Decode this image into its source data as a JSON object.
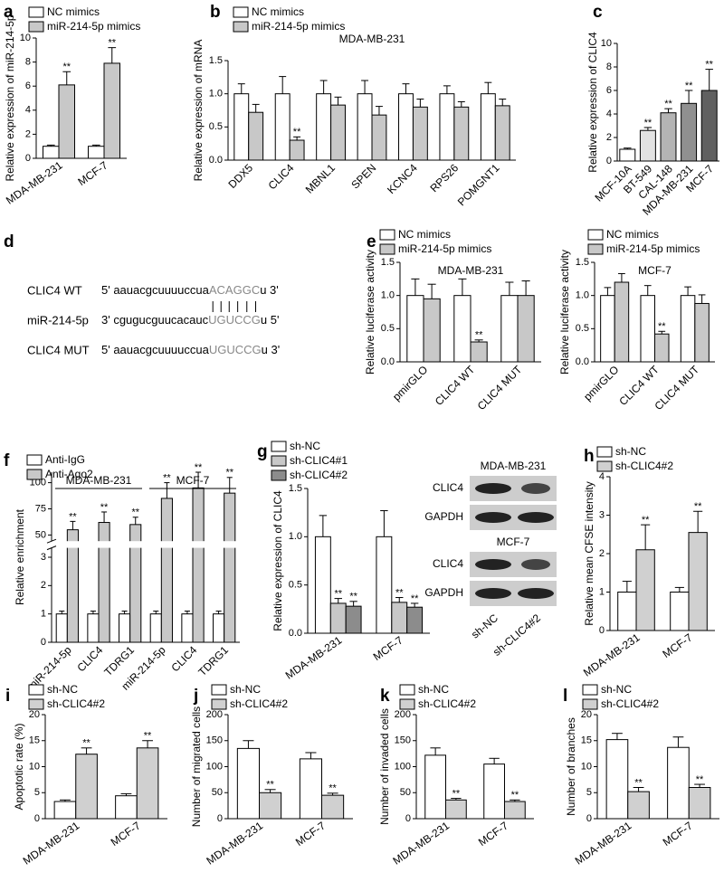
{
  "chart_data": [
    {
      "label": "a",
      "type": "bar",
      "y_label": "Relative expression of miR-214-5p",
      "categories": [
        "MDA-MB-231",
        "MCF-7"
      ],
      "series": [
        {
          "name": "NC mimics",
          "color": "#ffffff",
          "values": [
            1,
            1
          ],
          "errors": [
            0.1,
            0.1
          ]
        },
        {
          "name": "miR-214-5p mimics",
          "color": "#c8c8c8",
          "values": [
            6.1,
            7.9
          ],
          "errors": [
            1.1,
            1.3
          ],
          "annotations": [
            "**",
            "**"
          ]
        }
      ],
      "ylim": [
        0,
        10
      ],
      "yticks": [
        0,
        2,
        4,
        6,
        8,
        10
      ]
    },
    {
      "label": "b",
      "type": "bar",
      "subtitle": "MDA-MB-231",
      "y_label": "Relative expression of mRNA",
      "categories": [
        "DDX5",
        "CLIC4",
        "MBNL1",
        "SPEN",
        "KCNC4",
        "RPS26",
        "POMGNT1"
      ],
      "series": [
        {
          "name": "NC mimics",
          "color": "#ffffff",
          "values": [
            1,
            1,
            1,
            1,
            1,
            1,
            1
          ],
          "errors": [
            0.15,
            0.26,
            0.2,
            0.2,
            0.15,
            0.12,
            0.17
          ]
        },
        {
          "name": "miR-214-5p mimics",
          "color": "#c8c8c8",
          "values": [
            0.72,
            0.3,
            0.83,
            0.68,
            0.8,
            0.8,
            0.82
          ],
          "errors": [
            0.12,
            0.05,
            0.12,
            0.13,
            0.12,
            0.08,
            0.1
          ],
          "annotations": [
            null,
            "**",
            null,
            null,
            null,
            null,
            null
          ]
        }
      ],
      "ylim": [
        0,
        1.5
      ],
      "yticks": [
        {
          "value": 0,
          "label": "0.0"
        },
        {
          "value": 0.5,
          "label": "0.5"
        },
        {
          "value": 1,
          "label": "1.0"
        },
        {
          "value": 1.5,
          "label": "1.5"
        }
      ]
    },
    {
      "label": "c",
      "type": "bar",
      "y_label": "Relative expression of CLIC4",
      "categories": [
        "MCF-10A",
        "BT-549",
        "CAL-148",
        "MDA-MB-231",
        "MCF-7"
      ],
      "series": [
        {
          "colors": [
            "#ffffff",
            "#e2e2e2",
            "#b4b4b4",
            "#909090",
            "#606060"
          ],
          "values": [
            1,
            2.6,
            4.1,
            4.9,
            6.0
          ],
          "errors": [
            0.1,
            0.25,
            0.35,
            1.1,
            1.8
          ],
          "annotations": [
            null,
            "**",
            "**",
            "**",
            "**"
          ]
        }
      ],
      "ylim": [
        0,
        10
      ],
      "yticks": [
        0,
        2,
        4,
        6,
        8,
        10
      ]
    },
    {
      "label": "e",
      "type": "bar",
      "subtitle": "MDA-MB-231",
      "y_label": "Relative luciferase activity",
      "categories": [
        "pmirGLO",
        "CLIC4 WT",
        "CLIC4 MUT"
      ],
      "series": [
        {
          "name": "NC mimics",
          "color": "#ffffff",
          "values": [
            1,
            1,
            1
          ],
          "errors": [
            0.25,
            0.25,
            0.2
          ]
        },
        {
          "name": "miR-214-5p mimics",
          "color": "#c8c8c8",
          "values": [
            0.95,
            0.3,
            1.0
          ],
          "errors": [
            0.22,
            0.03,
            0.22
          ],
          "annotations": [
            null,
            "**",
            null
          ]
        }
      ],
      "ylim": [
        0,
        1.5
      ],
      "yticks": [
        {
          "value": 0,
          "label": "0.0"
        },
        {
          "value": 0.5,
          "label": "0.5"
        },
        {
          "value": 1,
          "label": "1.0"
        },
        {
          "value": 1.5,
          "label": "1.5"
        }
      ]
    },
    {
      "type": "bar",
      "subtitle": "MCF-7",
      "y_label": "Relative luciferase activity",
      "categories": [
        "pmirGLO",
        "CLIC4 WT",
        "CLIC4 MUT"
      ],
      "series": [
        {
          "name": "NC mimics",
          "color": "#ffffff",
          "values": [
            1,
            1,
            1
          ],
          "errors": [
            0.12,
            0.15,
            0.13
          ]
        },
        {
          "name": "miR-214-5p mimics",
          "color": "#c8c8c8",
          "values": [
            1.2,
            0.42,
            0.88
          ],
          "errors": [
            0.13,
            0.04,
            0.13
          ],
          "annotations": [
            null,
            "**",
            null
          ]
        }
      ],
      "ylim": [
        0,
        1.5
      ],
      "yticks": [
        {
          "value": 0,
          "label": "0.0"
        },
        {
          "value": 0.5,
          "label": "0.5"
        },
        {
          "value": 1,
          "label": "1.0"
        },
        {
          "value": 1.5,
          "label": "1.5"
        }
      ]
    },
    {
      "label": "f",
      "type": "bar",
      "y_label": "Relative enrichment",
      "categories": [
        "miR-214-5p",
        "CLIC4",
        "TDRG1",
        "miR-214-5p",
        "CLIC4",
        "TDRG1"
      ],
      "groups": [
        {
          "name": "MDA-MB-231",
          "size": 3
        },
        {
          "name": "MCF-7",
          "size": 3
        }
      ],
      "series": [
        {
          "name": "Anti-IgG",
          "color": "#ffffff",
          "values": [
            1,
            1,
            1,
            1,
            1,
            1
          ],
          "errors": [
            0.1,
            0.1,
            0.1,
            0.1,
            0.1,
            0.1
          ]
        },
        {
          "name": "Anti-Ago2",
          "color": "#c8c8c8",
          "values": [
            55,
            62,
            60,
            85,
            95,
            90
          ],
          "errors": [
            8,
            10,
            7,
            15,
            15,
            15
          ],
          "annotations": [
            "**",
            "**",
            "**",
            "**",
            "**",
            "**"
          ]
        }
      ],
      "ylim": [
        0,
        110
      ],
      "ybreak": [
        3.3,
        45
      ],
      "yticks": [
        0,
        1,
        2,
        3,
        50,
        75,
        100
      ]
    },
    {
      "label": "g",
      "type": "bar",
      "y_label": "Relative expression of CLIC4",
      "categories": [
        "MDA-MB-231",
        "MCF-7"
      ],
      "series": [
        {
          "name": "sh-NC",
          "color": "#ffffff",
          "values": [
            1,
            1
          ],
          "errors": [
            0.22,
            0.27
          ]
        },
        {
          "name": "sh-CLIC4#1",
          "color": "#c8c8c8",
          "values": [
            0.31,
            0.32
          ],
          "errors": [
            0.05,
            0.05
          ],
          "annotations": [
            "**",
            "**"
          ]
        },
        {
          "name": "sh-CLIC4#2",
          "color": "#8c8c8c",
          "values": [
            0.28,
            0.27
          ],
          "errors": [
            0.05,
            0.04
          ],
          "annotations": [
            "**",
            "**"
          ]
        }
      ],
      "ylim": [
        0,
        1.5
      ],
      "yticks": [
        {
          "value": 0,
          "label": "0.0"
        },
        {
          "value": 0.5,
          "label": "0.5"
        },
        {
          "value": 1,
          "label": "1.0"
        },
        {
          "value": 1.5,
          "label": "1.5"
        }
      ]
    },
    {
      "label": "h",
      "type": "bar",
      "y_label": "Relative mean CFSE intensity",
      "categories": [
        "MDA-MB-231",
        "MCF-7"
      ],
      "series": [
        {
          "name": "sh-NC",
          "color": "#ffffff",
          "values": [
            1,
            1
          ],
          "errors": [
            0.28,
            0.12
          ]
        },
        {
          "name": "sh-CLIC4#2",
          "color": "#d0d0d0",
          "values": [
            2.1,
            2.55
          ],
          "errors": [
            0.65,
            0.55
          ],
          "annotations": [
            "**",
            "**"
          ]
        }
      ],
      "ylim": [
        0,
        4
      ],
      "yticks": [
        0,
        1,
        2,
        3,
        4
      ]
    },
    {
      "label": "i",
      "type": "bar",
      "y_label": "Apoptotic rate (%)",
      "categories": [
        "MDA-MB-231",
        "MCF-7"
      ],
      "series": [
        {
          "name": "sh-NC",
          "color": "#ffffff",
          "values": [
            3.3,
            4.4
          ],
          "errors": [
            0.3,
            0.4
          ]
        },
        {
          "name": "sh-CLIC4#2",
          "color": "#d0d0d0",
          "values": [
            12.4,
            13.6
          ],
          "errors": [
            1.2,
            1.4
          ],
          "annotations": [
            "**",
            "**"
          ]
        }
      ],
      "ylim": [
        0,
        20
      ],
      "yticks": [
        0,
        5,
        10,
        15,
        20
      ]
    },
    {
      "label": "j",
      "type": "bar",
      "y_label": "Number of migrated cells",
      "categories": [
        "MDA-MB-231",
        "MCF-7"
      ],
      "series": [
        {
          "name": "sh-NC",
          "color": "#ffffff",
          "values": [
            135,
            115
          ],
          "errors": [
            15,
            12
          ]
        },
        {
          "name": "sh-CLIC4#2",
          "color": "#d0d0d0",
          "values": [
            50,
            45
          ],
          "errors": [
            6,
            4
          ],
          "annotations": [
            "**",
            "**"
          ]
        }
      ],
      "ylim": [
        0,
        200
      ],
      "yticks": [
        0,
        50,
        100,
        150,
        200
      ]
    },
    {
      "label": "k",
      "type": "bar",
      "y_label": "Number of invaded cells",
      "categories": [
        "MDA-MB-231",
        "MCF-7"
      ],
      "series": [
        {
          "name": "sh-NC",
          "color": "#ffffff",
          "values": [
            122,
            105
          ],
          "errors": [
            14,
            11
          ]
        },
        {
          "name": "sh-CLIC4#2",
          "color": "#d0d0d0",
          "values": [
            36,
            33
          ],
          "errors": [
            3,
            3
          ],
          "annotations": [
            "**",
            "**"
          ]
        }
      ],
      "ylim": [
        0,
        200
      ],
      "yticks": [
        0,
        50,
        100,
        150,
        200
      ]
    },
    {
      "label": "l",
      "type": "bar",
      "y_label": "Number of branches",
      "categories": [
        "MDA-MB-231",
        "MCF-7"
      ],
      "series": [
        {
          "name": "sh-NC",
          "color": "#ffffff",
          "values": [
            15.2,
            13.7
          ],
          "errors": [
            1.2,
            2
          ]
        },
        {
          "name": "sh-CLIC4#2",
          "color": "#d0d0d0",
          "values": [
            5.2,
            6.0
          ],
          "errors": [
            0.8,
            0.6
          ],
          "annotations": [
            "**",
            "**"
          ]
        }
      ],
      "ylim": [
        0,
        20
      ],
      "yticks": [
        0,
        5,
        10,
        15,
        20
      ]
    }
  ],
  "sequence_panel": {
    "label": "d",
    "rows": [
      {
        "name": "CLIC4 WT",
        "prefix": "5' aauacgcuuuuccua",
        "site": "ACAGGC",
        "suffix": "u 3'"
      },
      {
        "name": "miR-214-5p",
        "prefix": "3' cgugucguucacauc",
        "site": "UGUCCG",
        "suffix": "u 5'"
      },
      {
        "name": "CLIC4 MUT",
        "prefix": "5' aauacgcuuuuccua",
        "site": "UGUCCG",
        "suffix": "u 3'"
      }
    ]
  },
  "blot": {
    "groups": [
      {
        "cell_line": "MDA-MB-231",
        "rows": [
          "CLIC4",
          "GAPDH"
        ]
      },
      {
        "cell_line": "MCF-7",
        "rows": [
          "CLIC4",
          "GAPDH"
        ]
      }
    ],
    "lanes": [
      "sh-NC",
      "sh-CLIC4#2"
    ]
  }
}
